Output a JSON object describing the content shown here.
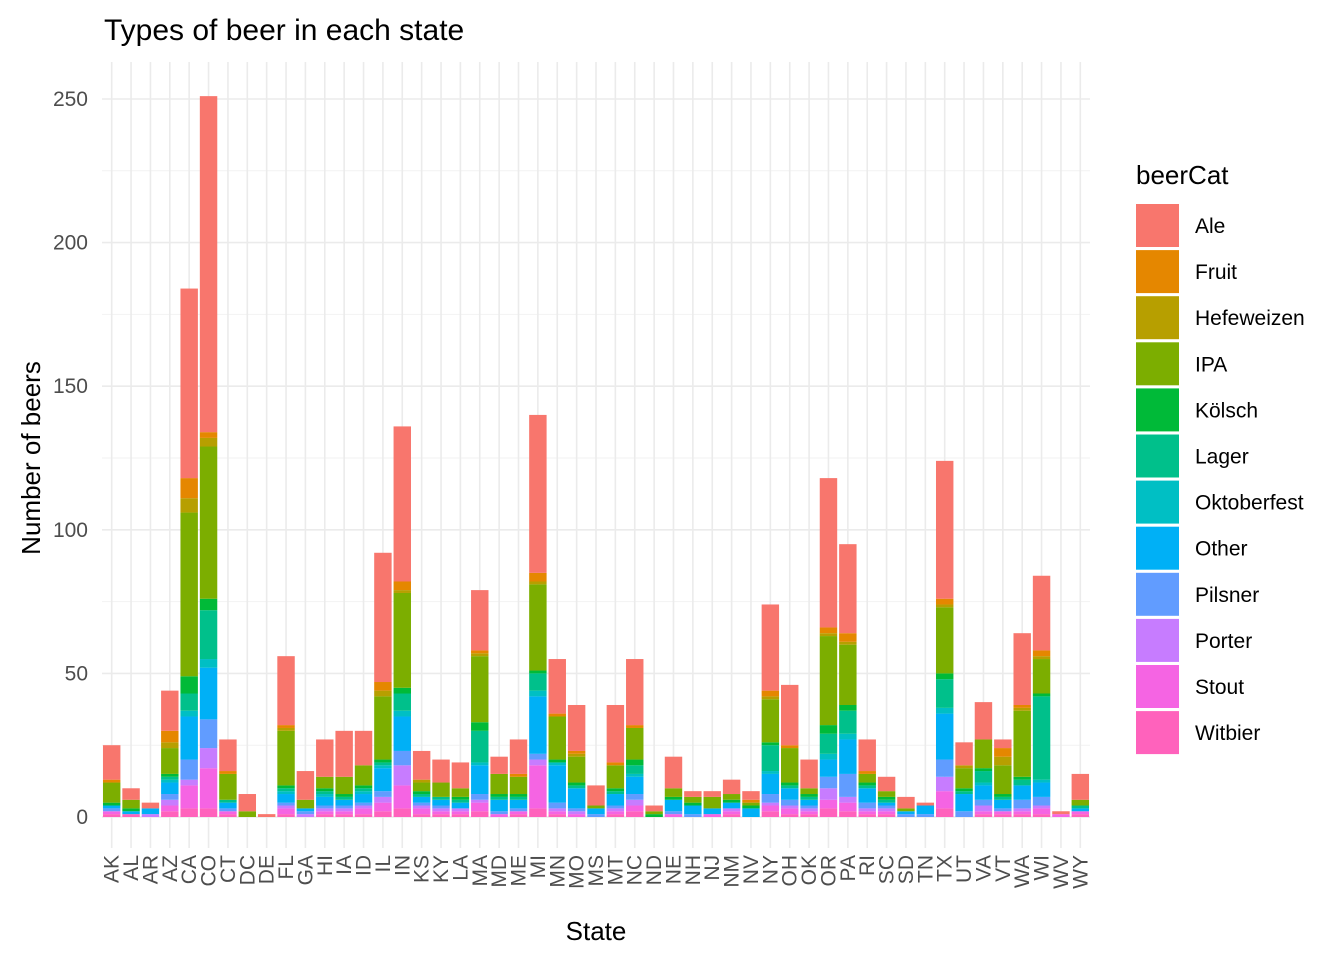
{
  "chart_data": {
    "type": "bar",
    "stacked": true,
    "title": "Types of beer in each state",
    "xlabel": "State",
    "ylabel": "Number of beers",
    "ylim": [
      0,
      262
    ],
    "yticks": [
      0,
      50,
      100,
      150,
      200,
      250
    ],
    "grid": true,
    "legend": {
      "title": "beerCat",
      "position": "right"
    },
    "categories": [
      "AK",
      "AL",
      "AR",
      "AZ",
      "CA",
      "CO",
      "CT",
      "DC",
      "DE",
      "FL",
      "GA",
      "HI",
      "IA",
      "ID",
      "IL",
      "IN",
      "KS",
      "KY",
      "LA",
      "MA",
      "MD",
      "ME",
      "MI",
      "MN",
      "MO",
      "MS",
      "MT",
      "NC",
      "ND",
      "NE",
      "NH",
      "NJ",
      "NM",
      "NV",
      "NY",
      "OH",
      "OK",
      "OR",
      "PA",
      "RI",
      "SC",
      "SD",
      "TN",
      "TX",
      "UT",
      "VA",
      "VT",
      "WA",
      "WI",
      "WV",
      "WY"
    ],
    "series": [
      {
        "name": "Witbier",
        "color": "#FF62BC",
        "values": [
          1,
          1,
          0,
          2,
          3,
          3,
          1,
          0,
          0,
          1,
          0,
          1,
          1,
          1,
          2,
          3,
          1,
          1,
          1,
          2,
          0,
          1,
          3,
          1,
          0,
          0,
          1,
          2,
          0,
          0,
          0,
          0,
          1,
          0,
          2,
          1,
          1,
          3,
          2,
          1,
          1,
          0,
          0,
          3,
          0,
          1,
          1,
          1,
          1,
          0,
          1
        ]
      },
      {
        "name": "Stout",
        "color": "#F564E3",
        "values": [
          1,
          0,
          0,
          2,
          8,
          14,
          1,
          0,
          0,
          2,
          0,
          1,
          1,
          2,
          3,
          8,
          2,
          1,
          1,
          3,
          1,
          1,
          15,
          1,
          1,
          0,
          1,
          2,
          0,
          1,
          0,
          1,
          1,
          0,
          2,
          2,
          1,
          3,
          3,
          1,
          1,
          0,
          0,
          6,
          0,
          1,
          1,
          1,
          2,
          1,
          1
        ]
      },
      {
        "name": "Porter",
        "color": "#C77CFF",
        "values": [
          0,
          0,
          1,
          2,
          2,
          7,
          0,
          0,
          0,
          1,
          1,
          1,
          1,
          1,
          2,
          7,
          1,
          1,
          1,
          1,
          0,
          0,
          2,
          1,
          1,
          0,
          1,
          2,
          0,
          0,
          0,
          0,
          1,
          0,
          1,
          1,
          1,
          4,
          2,
          1,
          1,
          0,
          0,
          5,
          0,
          2,
          0,
          1,
          1,
          0,
          0
        ]
      },
      {
        "name": "Pilsner",
        "color": "#619CFF",
        "values": [
          1,
          0,
          0,
          2,
          7,
          10,
          1,
          0,
          0,
          1,
          1,
          1,
          1,
          1,
          2,
          5,
          1,
          1,
          0,
          2,
          1,
          1,
          2,
          2,
          1,
          1,
          1,
          2,
          0,
          1,
          1,
          0,
          0,
          0,
          3,
          2,
          1,
          4,
          8,
          2,
          1,
          1,
          1,
          6,
          2,
          2,
          1,
          3,
          3,
          0,
          0
        ]
      },
      {
        "name": "Other",
        "color": "#00B0F6",
        "values": [
          1,
          1,
          2,
          4,
          15,
          18,
          2,
          0,
          0,
          3,
          1,
          3,
          2,
          3,
          8,
          12,
          2,
          2,
          2,
          10,
          4,
          3,
          20,
          13,
          7,
          2,
          4,
          6,
          0,
          4,
          3,
          2,
          2,
          3,
          7,
          4,
          2,
          6,
          12,
          5,
          1,
          1,
          3,
          16,
          6,
          5,
          3,
          5,
          5,
          0,
          1
        ]
      },
      {
        "name": "Oktoberfest",
        "color": "#00BFC4",
        "values": [
          0,
          0,
          0,
          1,
          2,
          3,
          0,
          0,
          0,
          1,
          0,
          1,
          0,
          1,
          1,
          2,
          0,
          0,
          0,
          1,
          0,
          0,
          2,
          1,
          0,
          0,
          0,
          1,
          0,
          0,
          0,
          0,
          0,
          0,
          1,
          0,
          0,
          2,
          2,
          0,
          0,
          0,
          0,
          2,
          0,
          1,
          0,
          0,
          1,
          0,
          0
        ]
      },
      {
        "name": "Lager",
        "color": "#00C08B",
        "values": [
          0,
          0,
          0,
          1,
          6,
          17,
          1,
          0,
          0,
          1,
          0,
          1,
          1,
          1,
          1,
          6,
          1,
          1,
          1,
          11,
          1,
          1,
          6,
          0,
          1,
          0,
          1,
          3,
          0,
          0,
          0,
          0,
          0,
          0,
          9,
          1,
          1,
          7,
          8,
          1,
          1,
          0,
          0,
          10,
          1,
          4,
          1,
          2,
          29,
          0,
          1
        ]
      },
      {
        "name": "Kölsch",
        "color": "#00BA38",
        "values": [
          1,
          1,
          0,
          1,
          6,
          4,
          0,
          0,
          0,
          1,
          0,
          1,
          1,
          1,
          1,
          2,
          1,
          0,
          1,
          3,
          1,
          1,
          1,
          1,
          1,
          0,
          1,
          2,
          1,
          1,
          1,
          0,
          1,
          1,
          1,
          1,
          1,
          3,
          2,
          1,
          1,
          0,
          0,
          2,
          1,
          1,
          1,
          1,
          1,
          0,
          0
        ]
      },
      {
        "name": "IPA",
        "color": "#7CAE00",
        "values": [
          7,
          3,
          0,
          9,
          57,
          53,
          9,
          2,
          0,
          19,
          3,
          4,
          6,
          7,
          22,
          33,
          3,
          5,
          3,
          23,
          7,
          6,
          30,
          15,
          9,
          1,
          8,
          11,
          1,
          3,
          2,
          4,
          2,
          1,
          15,
          12,
          2,
          31,
          21,
          3,
          2,
          1,
          0,
          23,
          7,
          10,
          10,
          23,
          12,
          0,
          2
        ]
      },
      {
        "name": "Hefeweizen",
        "color": "#B79F00",
        "values": [
          0,
          0,
          0,
          2,
          5,
          3,
          0,
          0,
          0,
          1,
          0,
          0,
          0,
          0,
          2,
          1,
          1,
          0,
          0,
          1,
          0,
          0,
          1,
          0,
          1,
          0,
          0,
          0,
          0,
          0,
          0,
          0,
          0,
          0,
          1,
          0,
          0,
          1,
          1,
          0,
          0,
          0,
          0,
          1,
          1,
          0,
          3,
          1,
          1,
          0,
          0
        ]
      },
      {
        "name": "Fruit",
        "color": "#E58700",
        "values": [
          1,
          0,
          0,
          4,
          7,
          2,
          1,
          0,
          0,
          1,
          0,
          0,
          0,
          0,
          3,
          3,
          0,
          0,
          0,
          1,
          0,
          1,
          3,
          1,
          1,
          0,
          1,
          1,
          0,
          0,
          0,
          0,
          0,
          1,
          2,
          1,
          0,
          2,
          3,
          1,
          0,
          0,
          0,
          2,
          0,
          0,
          3,
          1,
          2,
          0,
          0
        ]
      },
      {
        "name": "Ale",
        "color": "#F8766D",
        "values": [
          12,
          4,
          2,
          14,
          66,
          117,
          11,
          6,
          1,
          24,
          10,
          13,
          16,
          12,
          45,
          54,
          10,
          8,
          9,
          21,
          6,
          12,
          55,
          19,
          16,
          7,
          20,
          23,
          2,
          11,
          2,
          2,
          5,
          3,
          30,
          21,
          10,
          52,
          31,
          11,
          5,
          4,
          1,
          48,
          8,
          13,
          3,
          25,
          26,
          1,
          9
        ]
      }
    ]
  }
}
